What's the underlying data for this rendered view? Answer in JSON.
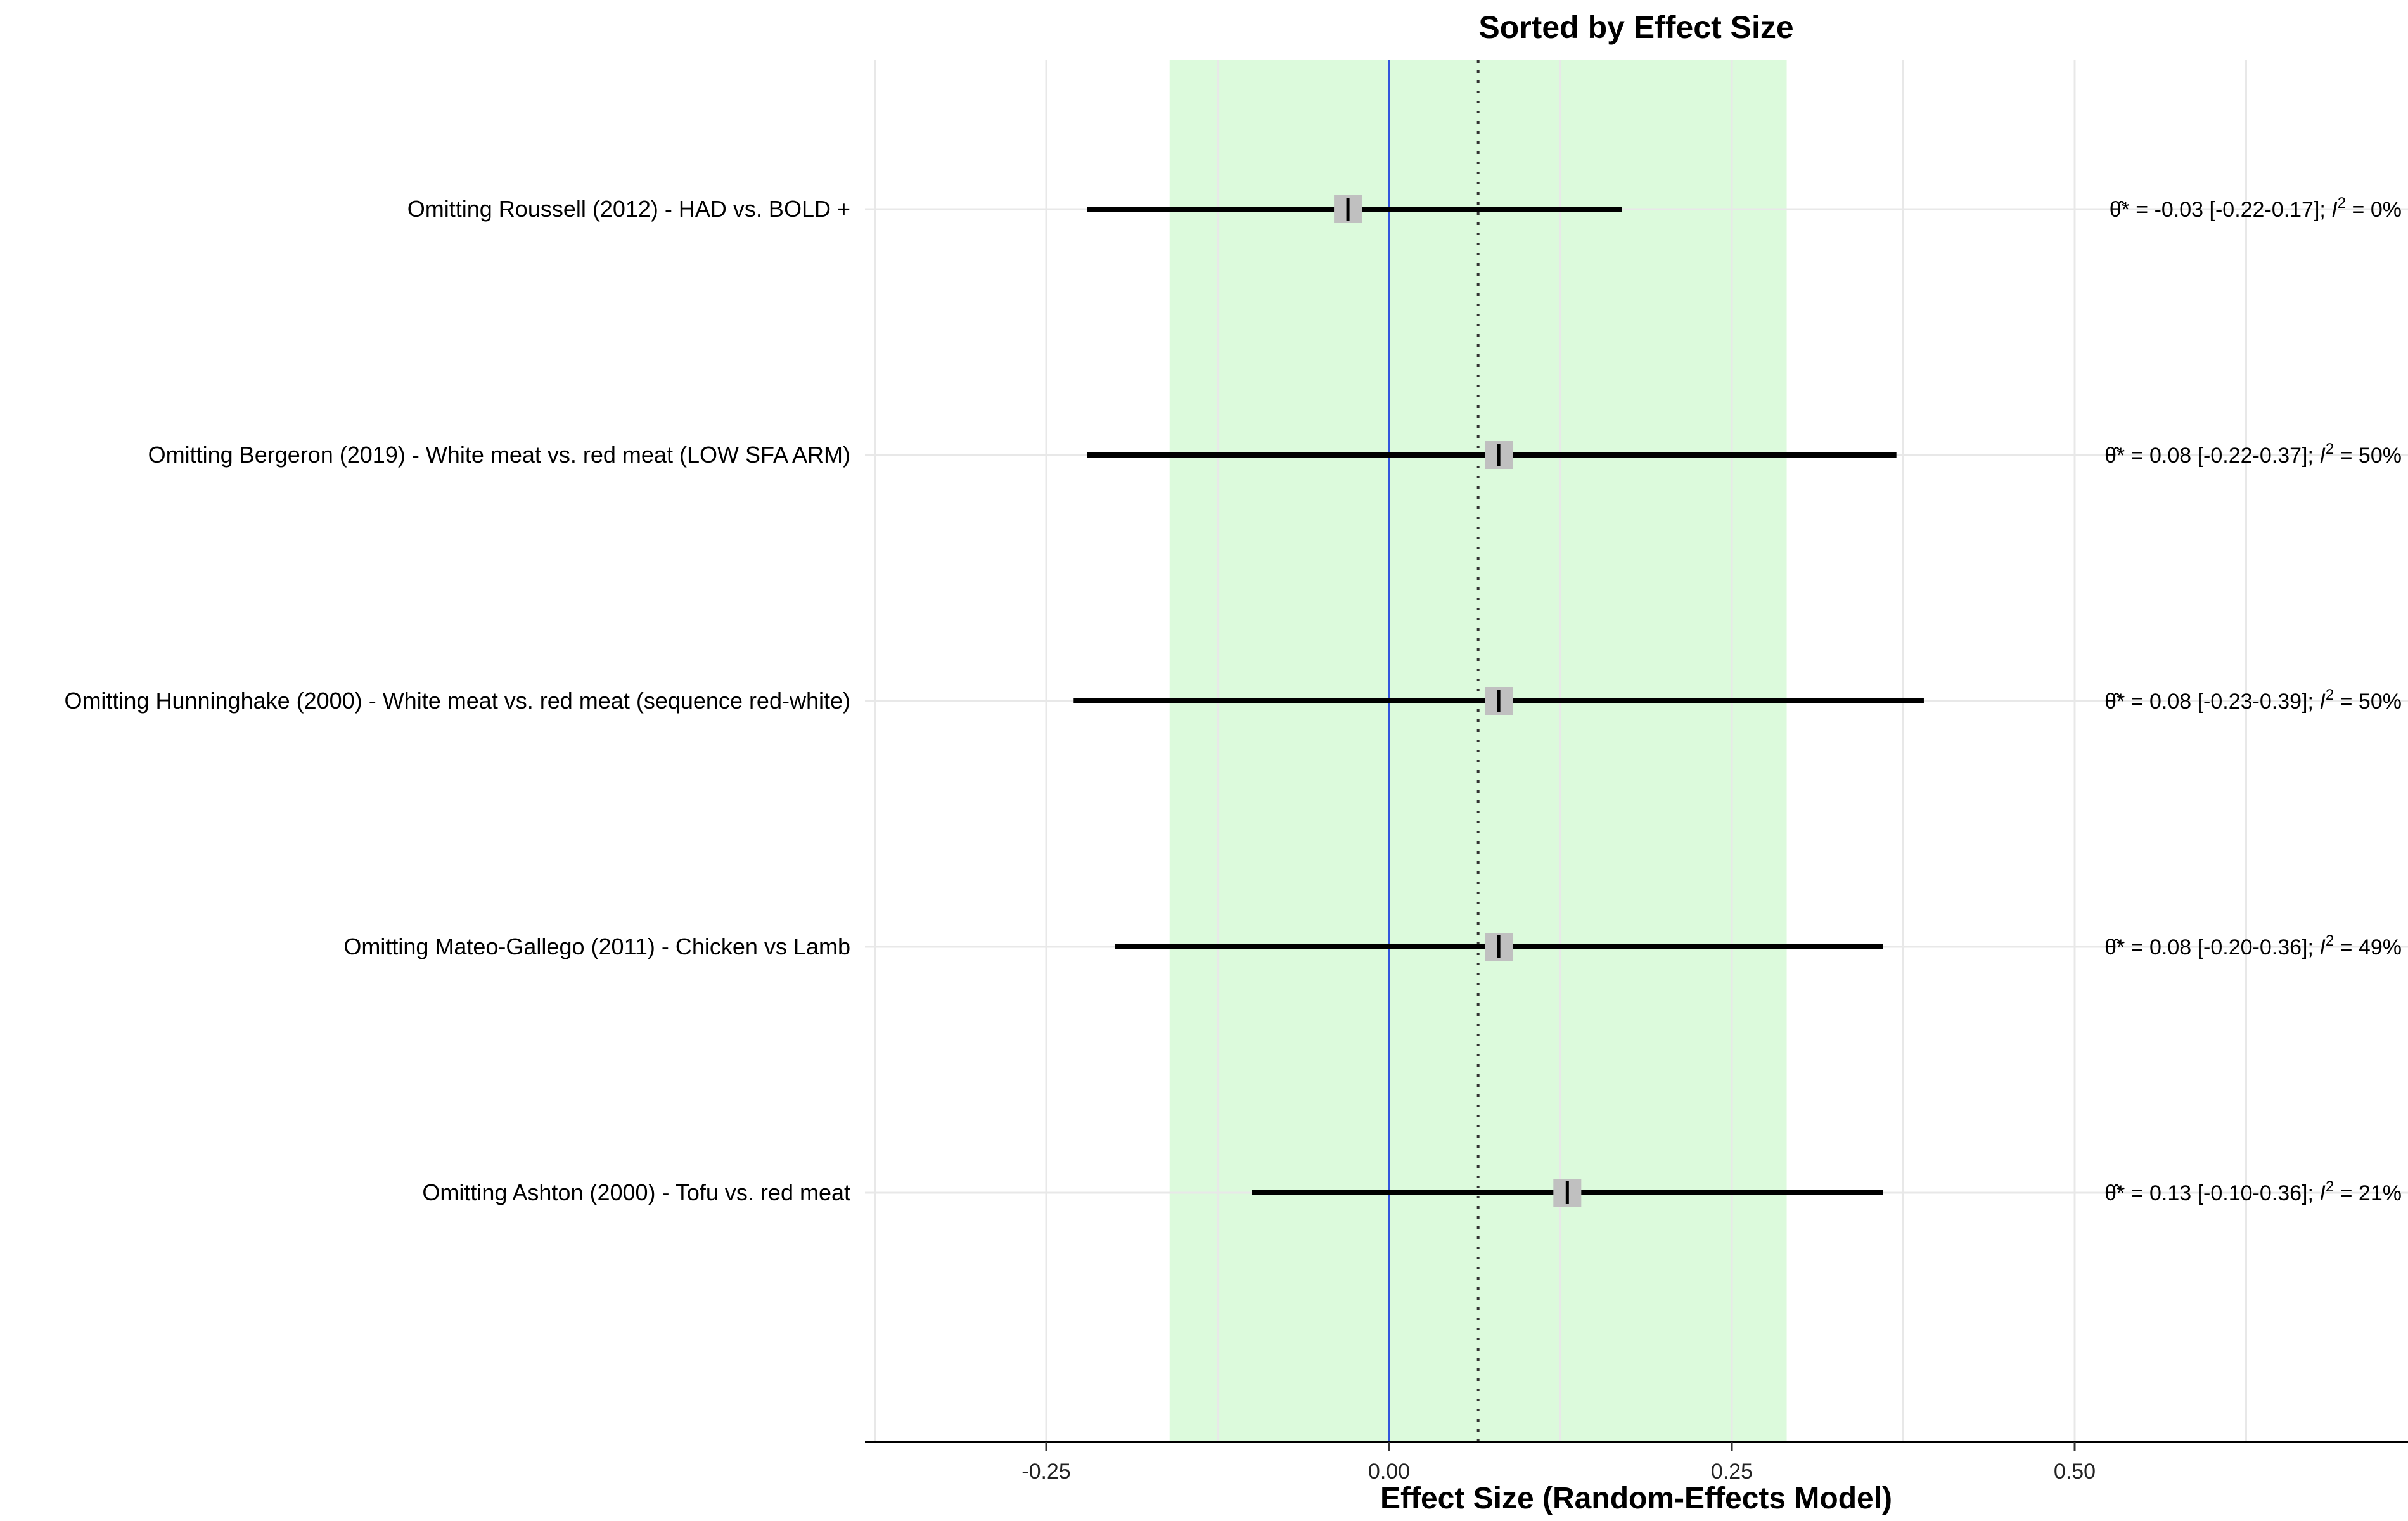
{
  "chart_data": {
    "type": "forest",
    "title": "Sorted by Effect Size",
    "xlabel": "Effect Size (Random-Effects Model)",
    "xlim": [
      -0.38,
      0.72
    ],
    "xticks": [
      -0.25,
      0.0,
      0.25,
      0.5
    ],
    "xtick_labels": [
      "-0.25",
      "0.00",
      "0.25",
      "0.50"
    ],
    "prediction_interval": [
      -0.16,
      0.29
    ],
    "null_line": 0.0,
    "pooled_estimate": 0.065,
    "grid": true,
    "colors": {
      "prediction_band": "#dcfadc",
      "null_line": "#3355dd",
      "ci_line": "#000000",
      "point": "#c0c0c0",
      "grid": "#e8e8e8"
    },
    "studies": [
      {
        "label": "Omitting Roussell (2012) - HAD vs. BOLD +",
        "estimate": -0.03,
        "lower": -0.22,
        "upper": 0.17,
        "annotation": "= -0.03 [-0.22-0.17]; ",
        "i2": "=  0%"
      },
      {
        "label": "Omitting Bergeron (2019) - White meat vs. red meat   (LOW SFA ARM)",
        "estimate": 0.08,
        "lower": -0.22,
        "upper": 0.37,
        "annotation": "=  0.08 [-0.22-0.37]; ",
        "i2": "= 50%"
      },
      {
        "label": "Omitting Hunninghake (2000) - White meat vs. red meat (sequence red-white)",
        "estimate": 0.08,
        "lower": -0.23,
        "upper": 0.39,
        "annotation": "=  0.08 [-0.23-0.39]; ",
        "i2": "= 50%"
      },
      {
        "label": "Omitting Mateo-Gallego (2011) - Chicken vs Lamb",
        "estimate": 0.08,
        "lower": -0.2,
        "upper": 0.36,
        "annotation": "=  0.08 [-0.20-0.36]; ",
        "i2": "= 49%"
      },
      {
        "label": "Omitting Ashton (2000) - Tofu vs. red meat",
        "estimate": 0.13,
        "lower": -0.1,
        "upper": 0.36,
        "annotation": "=  0.13 [-0.10-0.36]; ",
        "i2": "= 21%"
      }
    ]
  }
}
